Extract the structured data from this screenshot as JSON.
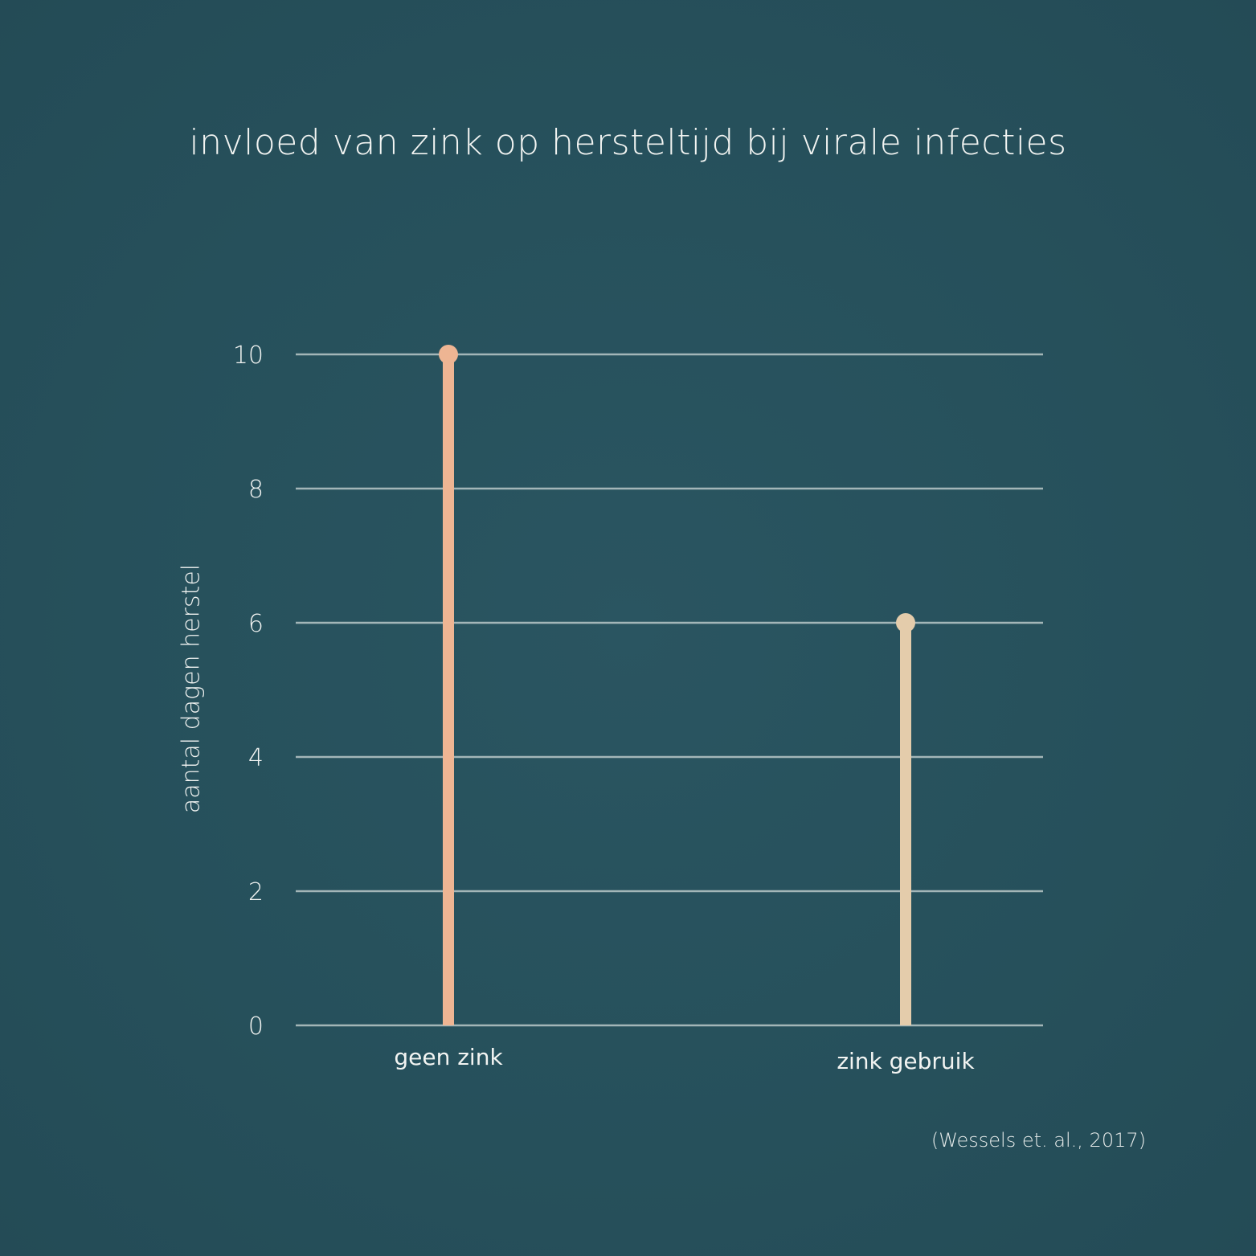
{
  "title": "invloed van zink op hersteltijd bij virale infecties",
  "source": "(Wessels et. al., 2017)",
  "colors": {
    "background": "#27505c",
    "grid": "#b9c8c8",
    "text": "#f2f4f2"
  },
  "chart_data": {
    "type": "lollipop",
    "title": "invloed van zink op hersteltijd bij virale infecties",
    "xlabel": "",
    "ylabel": "aantal dagen herstel",
    "ylim": [
      0,
      10
    ],
    "yticks": [
      0,
      2,
      4,
      6,
      8,
      10
    ],
    "grid": true,
    "categories": [
      "geen zink",
      "zink gebruik"
    ],
    "values": [
      10,
      6
    ],
    "colors": [
      "#eeb593",
      "#e4ccab"
    ]
  }
}
